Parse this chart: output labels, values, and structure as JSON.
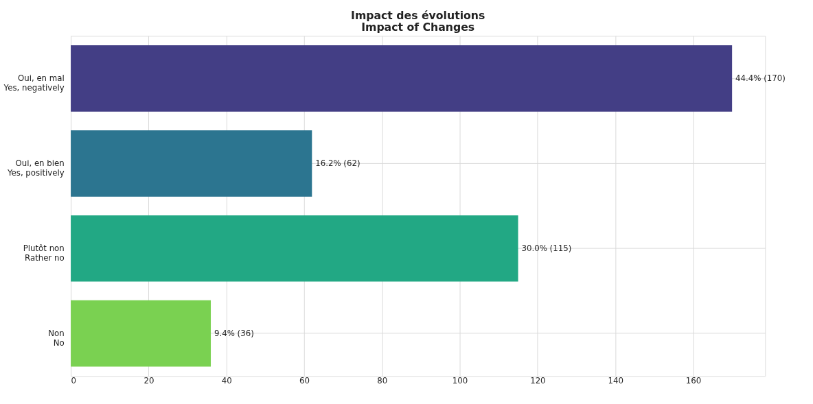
{
  "chart_data": {
    "type": "bar",
    "orientation": "horizontal",
    "title": "Impact des évolutions\nImpact of Changes",
    "categories": [
      "Oui, en mal\nYes, negatively",
      "Oui, en bien\nYes, positively",
      "Plutôt non\nRather no",
      "Non\nNo"
    ],
    "values": [
      170,
      62,
      115,
      36
    ],
    "colors": [
      "#433e85",
      "#2c7590",
      "#22a884",
      "#7ad151"
    ],
    "value_labels": [
      "44.4% (170)",
      "16.2% (62)",
      "30.0% (115)",
      "9.4% (36)"
    ],
    "xlim": [
      0,
      178.5
    ],
    "xticks": [
      0,
      20,
      40,
      60,
      80,
      100,
      120,
      140,
      160
    ],
    "grid": true
  }
}
